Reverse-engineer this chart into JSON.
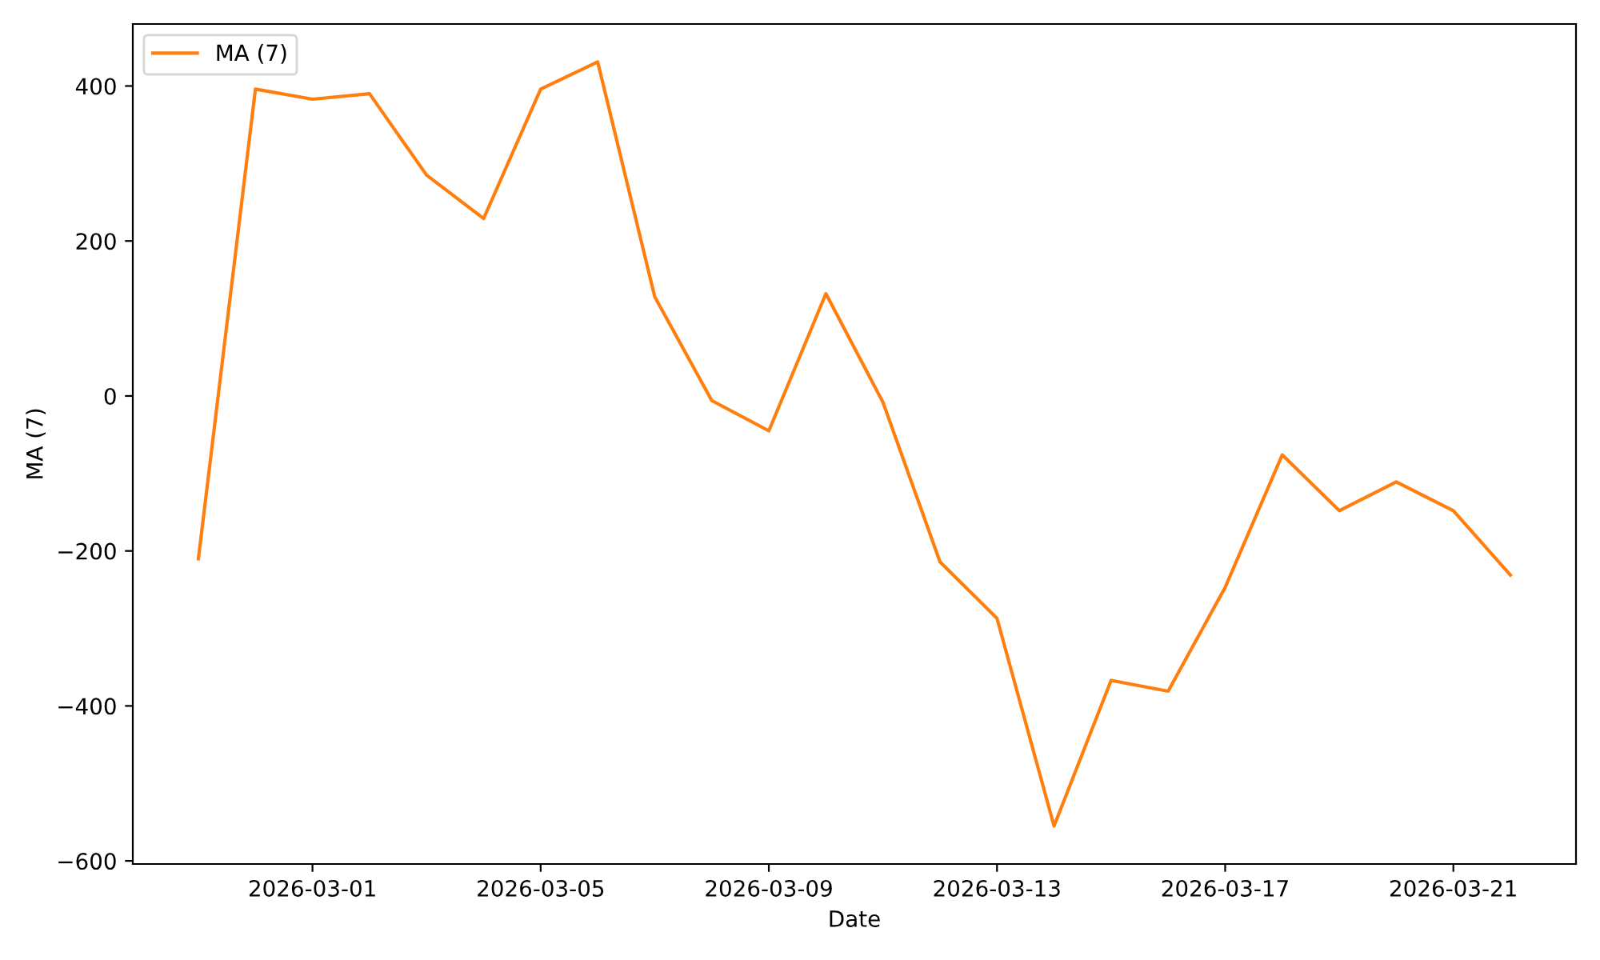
{
  "chart_data": {
    "type": "line",
    "xlabel": "Date",
    "ylabel": "MA (7)",
    "x": [
      "2026-02-27",
      "2026-02-28",
      "2026-03-01",
      "2026-03-02",
      "2026-03-03",
      "2026-03-04",
      "2026-03-05",
      "2026-03-06",
      "2026-03-07",
      "2026-03-08",
      "2026-03-09",
      "2026-03-10",
      "2026-03-11",
      "2026-03-12",
      "2026-03-13",
      "2026-03-14",
      "2026-03-15",
      "2026-03-16",
      "2026-03-17",
      "2026-03-18",
      "2026-03-19",
      "2026-03-20",
      "2026-03-21",
      "2026-03-22"
    ],
    "series": [
      {
        "name": "MA (7)",
        "color": "#ff7f0e",
        "values": [
          -210,
          396,
          383,
          390,
          285,
          229,
          396,
          431,
          128,
          -6,
          -45,
          132,
          -8,
          -214,
          -287,
          -555,
          -367,
          -381,
          -247,
          -76,
          -148,
          -111,
          -148,
          -231
        ]
      }
    ],
    "xlim": [
      "2026-02-25T20:24",
      "2026-03-23T03:36"
    ],
    "xticks": [
      "2026-03-01",
      "2026-03-05",
      "2026-03-09",
      "2026-03-13",
      "2026-03-17",
      "2026-03-21"
    ],
    "ylim": [
      -604,
      480
    ],
    "yticks": [
      -600,
      -400,
      -200,
      0,
      200,
      400
    ],
    "grid": false,
    "legend": "top left",
    "marker": "none",
    "line_style": "solid"
  }
}
